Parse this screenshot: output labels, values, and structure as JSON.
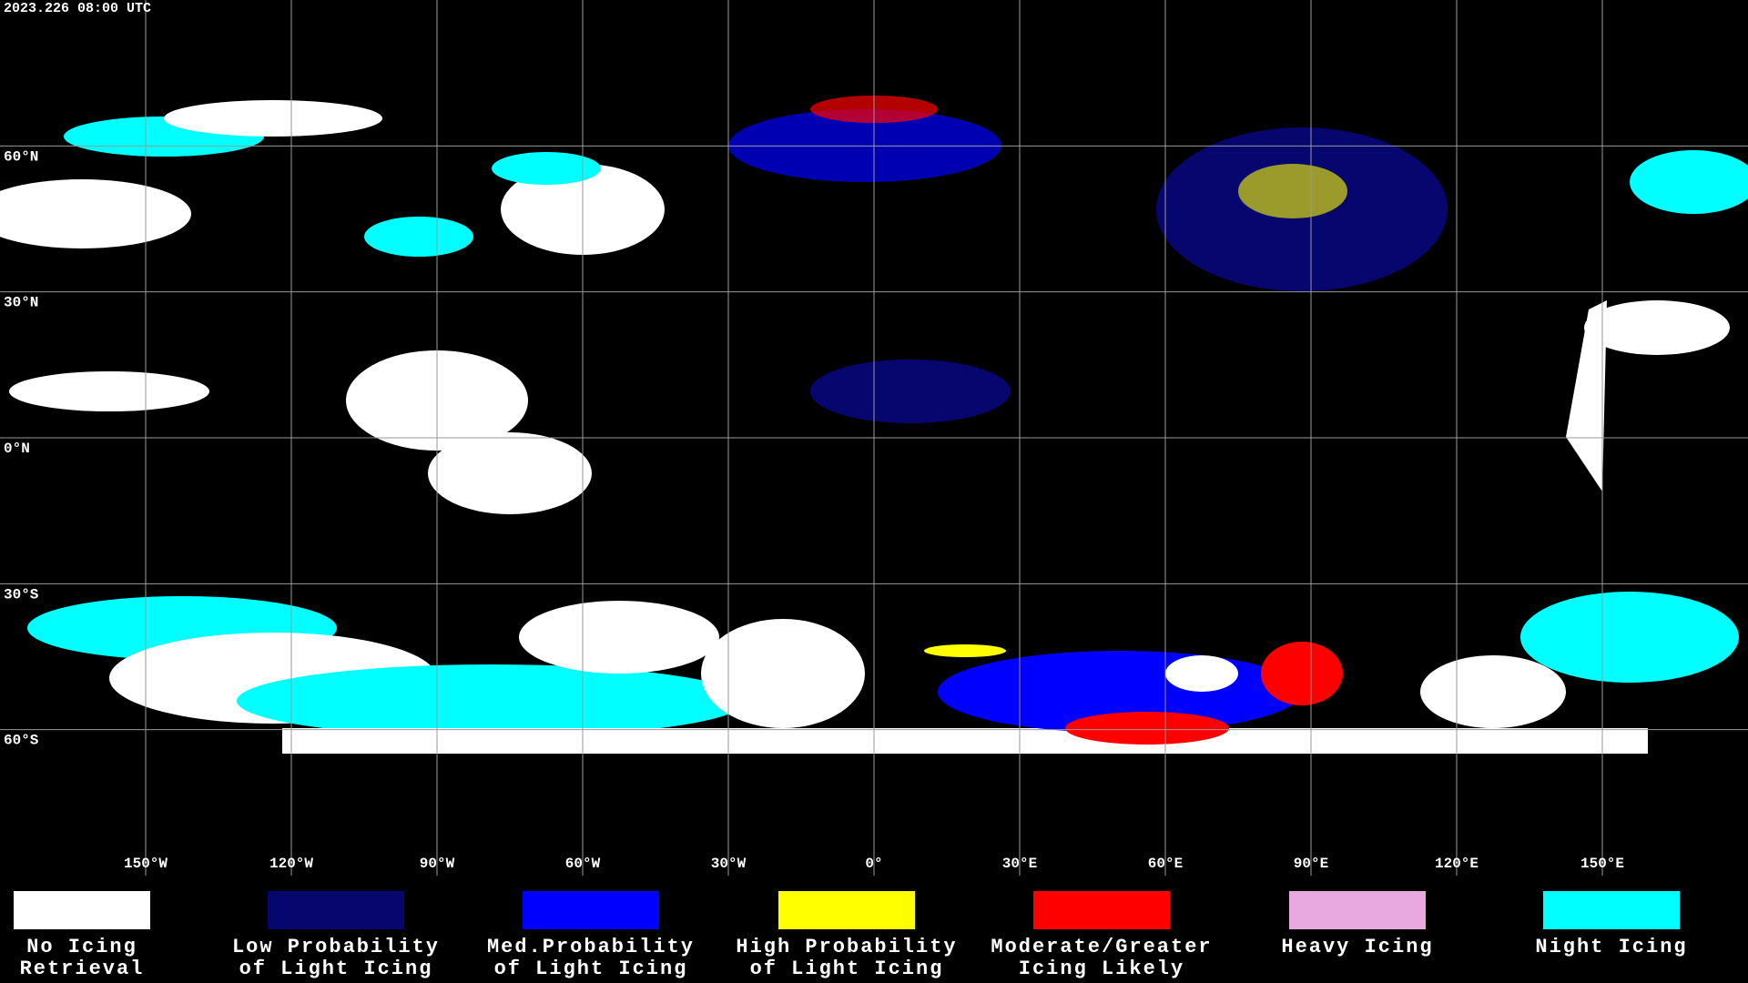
{
  "timestamp": "2023.226 08:00 UTC",
  "grid": {
    "longitudes": [
      {
        "value": -150,
        "label": "150°W"
      },
      {
        "value": -120,
        "label": "120°W"
      },
      {
        "value": -90,
        "label": "90°W"
      },
      {
        "value": -60,
        "label": "60°W"
      },
      {
        "value": -30,
        "label": "30°W"
      },
      {
        "value": 0,
        "label": "0°"
      },
      {
        "value": 30,
        "label": "30°E"
      },
      {
        "value": 60,
        "label": "60°E"
      },
      {
        "value": 90,
        "label": "90°E"
      },
      {
        "value": 120,
        "label": "120°E"
      },
      {
        "value": 150,
        "label": "150°E"
      }
    ],
    "latitudes": [
      {
        "value": 60,
        "label": "60°N"
      },
      {
        "value": 30,
        "label": "30°N"
      },
      {
        "value": 0,
        "label": "0°N"
      },
      {
        "value": -30,
        "label": "30°S"
      },
      {
        "value": -60,
        "label": "60°S"
      }
    ]
  },
  "legend": {
    "items": [
      {
        "color": "#ffffff",
        "lines": [
          "No Icing",
          "Retrieval"
        ]
      },
      {
        "color": "#06066e",
        "lines": [
          "Low Probability",
          "of Light Icing"
        ]
      },
      {
        "color": "#0000ff",
        "lines": [
          "Med.Probability",
          "of Light Icing"
        ]
      },
      {
        "color": "#ffff00",
        "lines": [
          "High Probability",
          "of Light Icing"
        ]
      },
      {
        "color": "#ff0000",
        "lines": [
          "Moderate/Greater",
          "Icing Likely"
        ]
      },
      {
        "color": "#e8a8e0",
        "lines": [
          "Heavy Icing"
        ]
      },
      {
        "color": "#00ffff",
        "lines": [
          "Night Icing"
        ]
      }
    ]
  }
}
